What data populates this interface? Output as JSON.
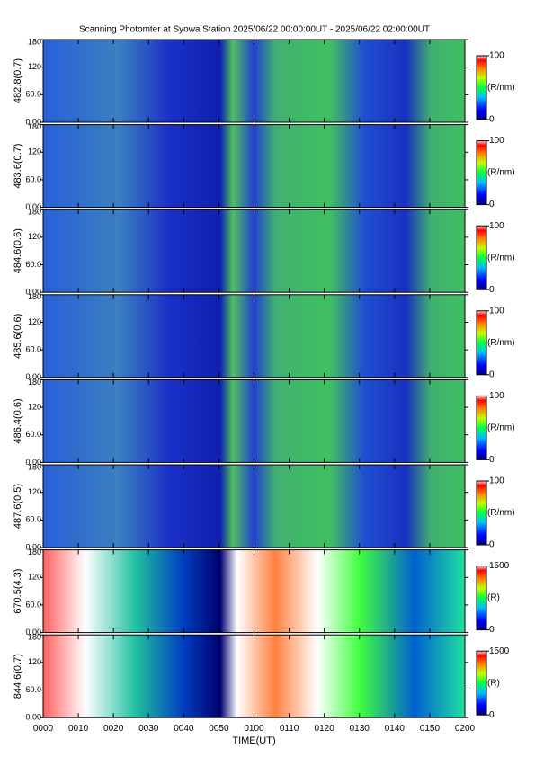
{
  "chart_data": {
    "type": "heatmap",
    "title": "Scanning Photomter at Syowa Station 2025/06/22 00:00:00UT - 2025/06/22 02:00:00UT",
    "xlabel": "TIME(UT)",
    "xlim": [
      0,
      120
    ],
    "xticks": [
      {
        "value": 0,
        "label": "0000"
      },
      {
        "value": 10,
        "label": "0010"
      },
      {
        "value": 20,
        "label": "0020"
      },
      {
        "value": 30,
        "label": "0030"
      },
      {
        "value": 40,
        "label": "0040"
      },
      {
        "value": 50,
        "label": "0050"
      },
      {
        "value": 60,
        "label": "0100"
      },
      {
        "value": 70,
        "label": "0110"
      },
      {
        "value": 80,
        "label": "0120"
      },
      {
        "value": 90,
        "label": "0130"
      },
      {
        "value": 100,
        "label": "0140"
      },
      {
        "value": 110,
        "label": "0150"
      },
      {
        "value": 120,
        "label": "0200"
      }
    ],
    "ylim": [
      0,
      180
    ],
    "yticks": [
      {
        "value": 0,
        "label": "0.00"
      },
      {
        "value": 60,
        "label": "60.0"
      },
      120,
      180
    ],
    "panels": [
      {
        "ylabel": "482.8(0.7)",
        "clim": [
          0,
          100
        ],
        "cticks": [
          0,
          100
        ],
        "clabel": "(R/nm)"
      },
      {
        "ylabel": "483.6(0.7)",
        "clim": [
          0,
          100
        ],
        "cticks": [
          0,
          100
        ],
        "clabel": "(R/nm)"
      },
      {
        "ylabel": "484.6(0.6)",
        "clim": [
          0,
          100
        ],
        "cticks": [
          0,
          100
        ],
        "clabel": "(R/nm)"
      },
      {
        "ylabel": "485.6(0.6)",
        "clim": [
          0,
          100
        ],
        "cticks": [
          0,
          100
        ],
        "clabel": "(R/nm)"
      },
      {
        "ylabel": "486.4(0.6)",
        "clim": [
          0,
          100
        ],
        "cticks": [
          0,
          100
        ],
        "clabel": "(R/nm)"
      },
      {
        "ylabel": "487.6(0.5)",
        "clim": [
          0,
          100
        ],
        "cticks": [
          0,
          100
        ],
        "clabel": "(R/nm)"
      },
      {
        "ylabel": "670.5(4.3)",
        "clim": [
          0,
          1500
        ],
        "cticks": [
          0,
          1500
        ],
        "clabel": "(R)"
      },
      {
        "ylabel": "844.6(0.7)",
        "clim": [
          0,
          1500
        ],
        "cticks": [
          0,
          1500
        ],
        "clabel": "(R)"
      }
    ]
  }
}
